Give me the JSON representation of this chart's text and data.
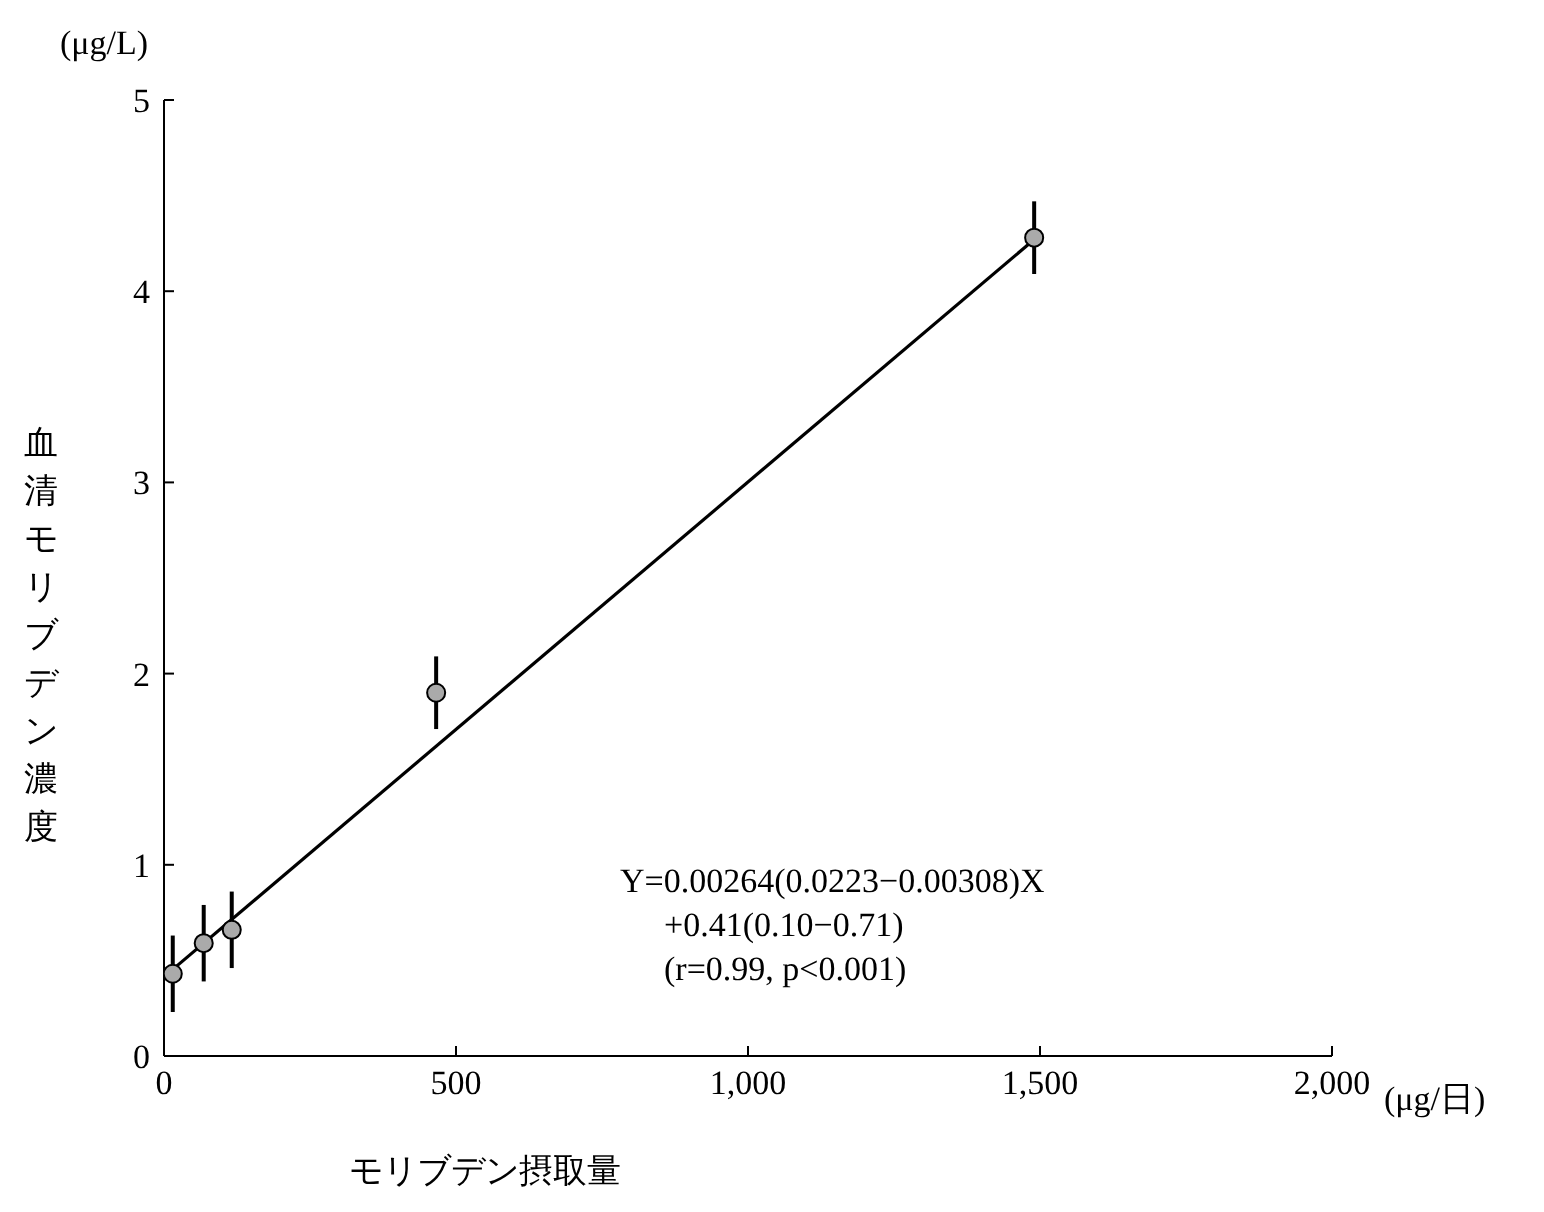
{
  "chart_data": {
    "type": "scatter",
    "xlabel": "モリブデン摂取量",
    "ylabel": "血清モリブデン濃度",
    "xlim": [
      0,
      2000
    ],
    "xticks": [
      {
        "value": 0,
        "label": "0"
      },
      {
        "value": 500,
        "label": "500"
      },
      {
        "value": 1000,
        "label": "1,000"
      },
      {
        "value": 1500,
        "label": "1,500"
      },
      {
        "value": 2000,
        "label": "2,000"
      }
    ],
    "ylim": [
      0,
      5
    ],
    "yticks": [
      0,
      1,
      2,
      3,
      4,
      5
    ],
    "grid": false,
    "legend": false,
    "marker": "circle",
    "series": [
      {
        "color": "#aaaaaa",
        "x": [
          15,
          68,
          116,
          466,
          1490
        ],
        "values": [
          0.43,
          0.59,
          0.66,
          1.9,
          4.28
        ],
        "errors": [
          0.2,
          0.2,
          0.2,
          0.19,
          0.19
        ]
      },
      {
        "type": "line",
        "color": "#000000",
        "x": [
          10,
          1490
        ],
        "values": [
          0.44,
          4.27
        ],
        "marker": "none",
        "line_style": "solid"
      }
    ],
    "annotations": [
      "(μg/L)",
      "(μg/日)",
      "Y=0.00264(0.0223−0.00308)X",
      "+0.41(0.10−0.71)",
      "(r=0.99, p<0.001)"
    ]
  }
}
